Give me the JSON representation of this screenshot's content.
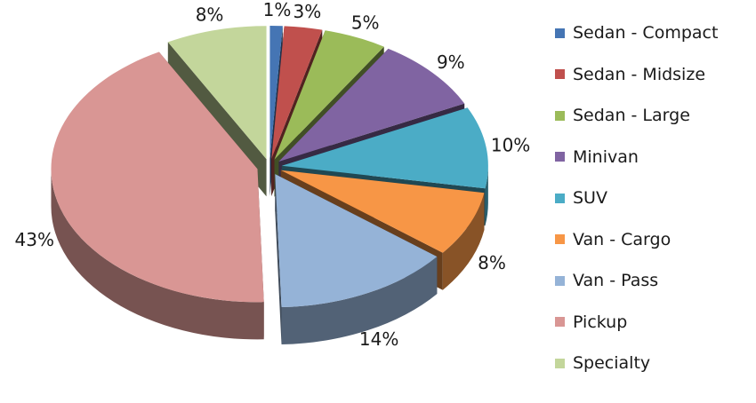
{
  "chart_data": {
    "type": "pie",
    "style": "3d-exploded",
    "title": "",
    "legend_position": "right",
    "slices": [
      {
        "name": "Sedan - Compact",
        "value": 1,
        "label": "1%",
        "color": "#4575B4"
      },
      {
        "name": "Sedan - Midsize",
        "value": 3,
        "label": "3%",
        "color": "#C0504D"
      },
      {
        "name": "Sedan - Large",
        "value": 5,
        "label": "5%",
        "color": "#9BBB59"
      },
      {
        "name": "Minivan",
        "value": 9,
        "label": "9%",
        "color": "#8064A2"
      },
      {
        "name": "SUV",
        "value": 10,
        "label": "10%",
        "color": "#4BACC6"
      },
      {
        "name": "Van - Cargo",
        "value": 8,
        "label": "8%",
        "color": "#F79646"
      },
      {
        "name": "Van - Pass",
        "value": 14,
        "label": "14%",
        "color": "#95B3D7"
      },
      {
        "name": "Pickup",
        "value": 43,
        "label": "43%",
        "color": "#D99694"
      },
      {
        "name": "Specialty",
        "value": 8,
        "label": "8%",
        "color": "#C3D69B"
      }
    ]
  }
}
